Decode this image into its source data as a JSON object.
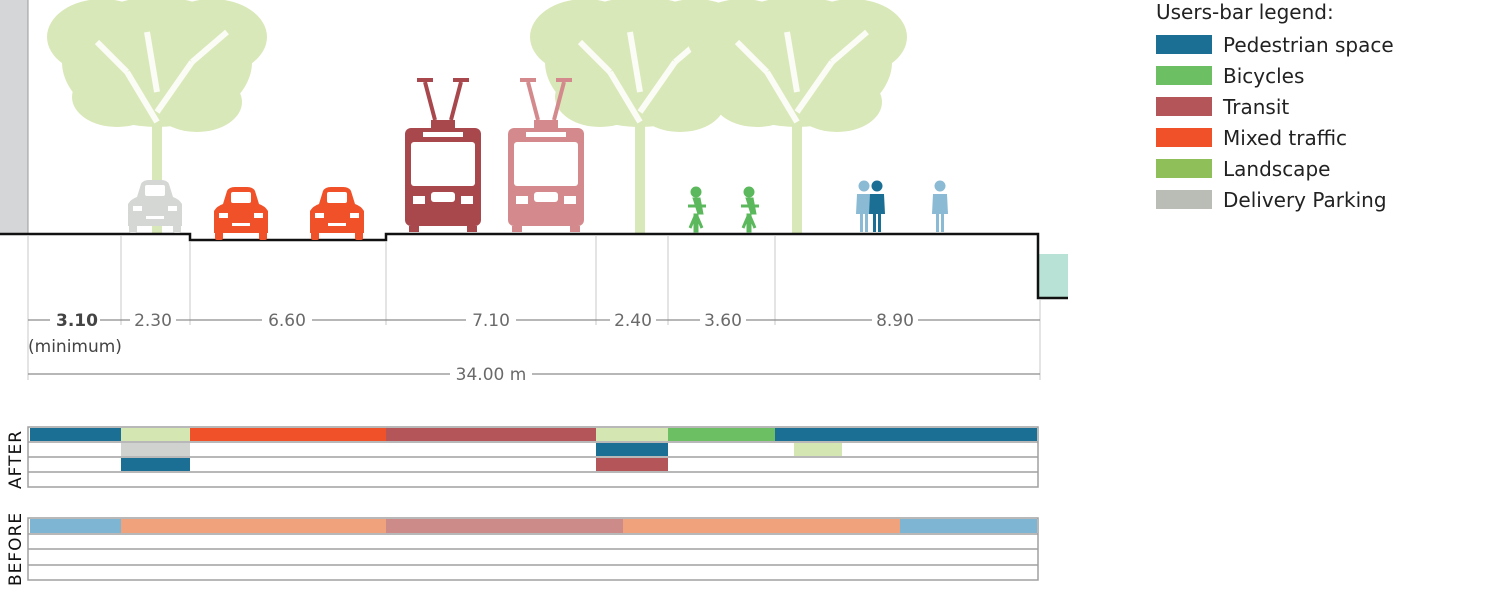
{
  "legend": {
    "title": "Users-bar legend:",
    "items": [
      {
        "label": "Pedestrian space",
        "color": "#1b6f94"
      },
      {
        "label": "Bicycles",
        "color": "#6cbf62"
      },
      {
        "label": "Transit",
        "color": "#b35559"
      },
      {
        "label": "Mixed traffic",
        "color": "#f05128"
      },
      {
        "label": "Landscape",
        "color": "#8fbf58"
      },
      {
        "label": "Delivery Parking",
        "color": "#b9bdb5"
      }
    ]
  },
  "section": {
    "segments": [
      {
        "label": "3.10",
        "sublabel": "(minimum)"
      },
      {
        "label": "2.30"
      },
      {
        "label": "6.60"
      },
      {
        "label": "7.10"
      },
      {
        "label": "2.40"
      },
      {
        "label": "3.60"
      },
      {
        "label": "8.90"
      }
    ],
    "total_label": "34.00 m"
  },
  "users_bars": {
    "after_label": "AFTER",
    "before_label": "BEFORE"
  },
  "icons": {
    "tree": "tree-icon",
    "car": "car-icon",
    "tram": "tram-icon",
    "cyclist": "cyclist-icon",
    "pedestrian": "pedestrian-icon"
  },
  "colors": {
    "car_parked": "#d5d7d5",
    "car_moving": "#f05128",
    "tram_dark": "#a8484d",
    "tram_light": "#d48a8c",
    "cyclist": "#5cb85c",
    "pedestrian_dark": "#1b6f94",
    "pedestrian_light": "#8bbad4",
    "tree": "#d9e8b8",
    "before_ped": "#7db5d3",
    "before_traffic": "#f0a27d",
    "before_transit": "#cc8a88"
  }
}
